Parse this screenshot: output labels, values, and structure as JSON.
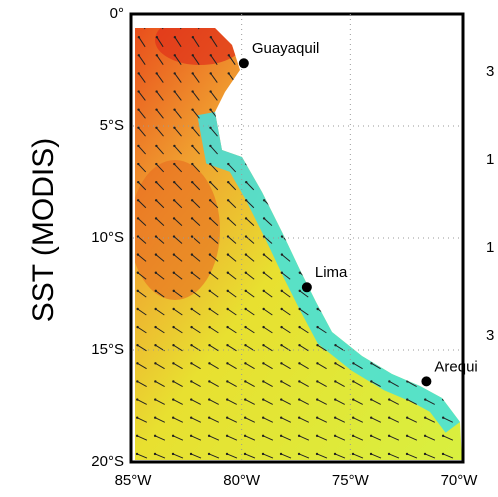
{
  "ylabel": "SST (MODIS)",
  "lat_ticks": [
    {
      "value": 0,
      "label": "0°"
    },
    {
      "value": -5,
      "label": "5°S"
    },
    {
      "value": -10,
      "label": "10°S"
    },
    {
      "value": -15,
      "label": "15°S"
    },
    {
      "value": -20,
      "label": "20°S"
    }
  ],
  "lon_ticks": [
    {
      "value": -85,
      "label": "85°W"
    },
    {
      "value": -80,
      "label": "80°W"
    },
    {
      "value": -75,
      "label": "75°W"
    },
    {
      "value": -70,
      "label": "70°W"
    }
  ],
  "lon_range": [
    -85,
    -70
  ],
  "lat_range": [
    -20,
    0
  ],
  "cities": [
    {
      "name": "Guayaquil",
      "lon": -79.9,
      "lat": -2.2
    },
    {
      "name": "Lima",
      "lon": -77.0,
      "lat": -12.2
    },
    {
      "name": "Arequi",
      "lon": -71.5,
      "lat": -16.4
    }
  ],
  "edge_texts": [
    "3",
    "1",
    "1",
    "3"
  ]
}
